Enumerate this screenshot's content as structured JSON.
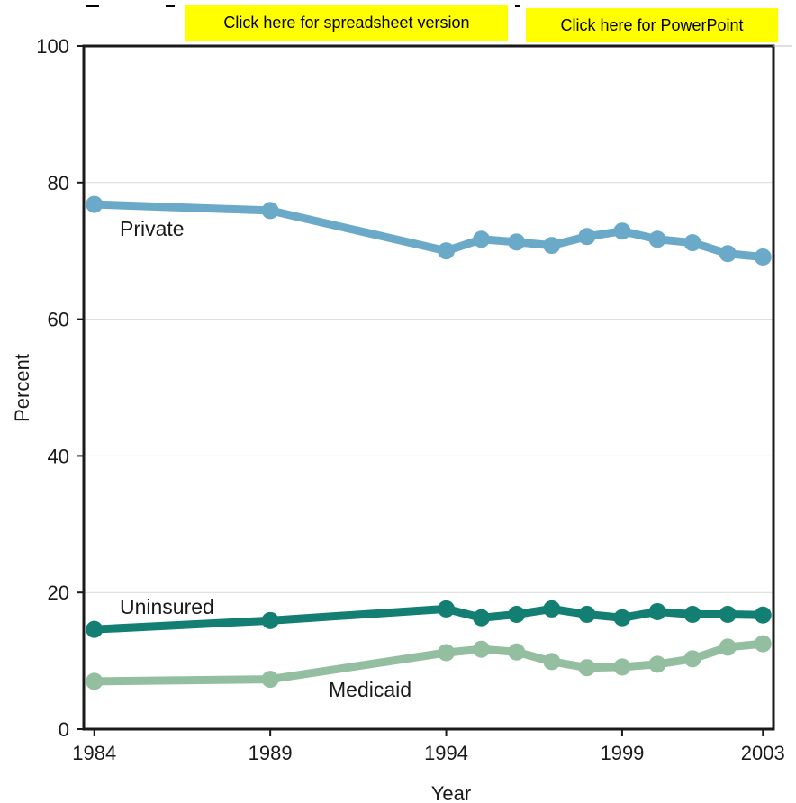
{
  "buttons": {
    "spreadsheet_label": "Click here for spreadsheet version",
    "powerpoint_label": "Click here for PowerPoint"
  },
  "colors": {
    "private": "#6aaac8",
    "uninsured": "#137e72",
    "medicaid": "#93bfa0",
    "button_bg": "#ffff00",
    "grid": "#d9d9d9",
    "axis": "#1a1a1a"
  },
  "chart_data": {
    "type": "line",
    "title": "",
    "xlabel": "Year",
    "ylabel": "Percent",
    "ylim": [
      0,
      100
    ],
    "yticks": [
      0,
      20,
      40,
      60,
      80,
      100
    ],
    "xticks": [
      1984,
      1989,
      1994,
      1999,
      2003
    ],
    "xlim": [
      1983.7,
      2003.3
    ],
    "grid": true,
    "series": [
      {
        "name": "Private",
        "color_key": "private",
        "x": [
          1984,
          1989,
          1994,
          1995,
          1996,
          1997,
          1998,
          1999,
          2000,
          2001,
          2002,
          2003
        ],
        "values": [
          76.8,
          75.9,
          70.0,
          71.7,
          71.3,
          70.8,
          72.1,
          72.9,
          71.7,
          71.2,
          69.6,
          69.1
        ]
      },
      {
        "name": "Uninsured",
        "color_key": "uninsured",
        "x": [
          1984,
          1989,
          1994,
          1995,
          1996,
          1997,
          1998,
          1999,
          2000,
          2001,
          2002,
          2003
        ],
        "values": [
          14.6,
          15.9,
          17.6,
          16.3,
          16.8,
          17.6,
          16.8,
          16.3,
          17.2,
          16.8,
          16.8,
          16.7
        ]
      },
      {
        "name": "Medicaid",
        "color_key": "medicaid",
        "x": [
          1984,
          1989,
          1994,
          1995,
          1996,
          1997,
          1998,
          1999,
          2000,
          2001,
          2002,
          2003
        ],
        "values": [
          7.0,
          7.3,
          11.2,
          11.7,
          11.3,
          9.9,
          9.0,
          9.1,
          9.5,
          10.3,
          12.0,
          12.5
        ]
      }
    ]
  }
}
